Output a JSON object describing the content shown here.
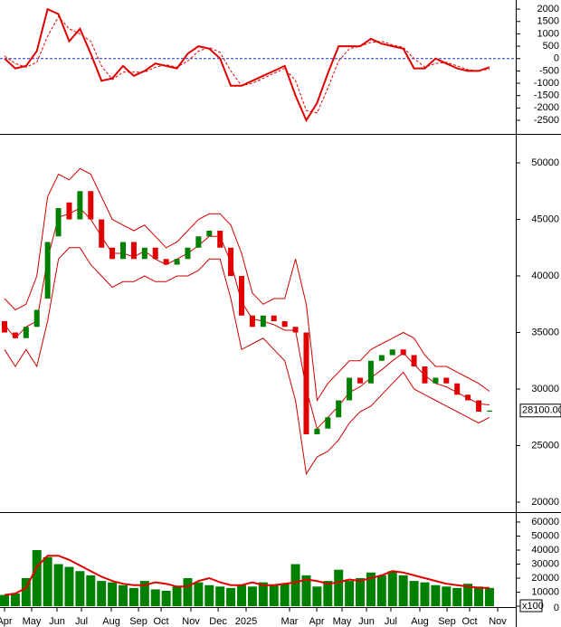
{
  "chart_data": [
    {
      "type": "line",
      "ylim": [
        -3050,
        2370
      ],
      "yticks": [
        2000,
        1500,
        1000,
        500,
        0,
        -500,
        -1000,
        -1500,
        -2000,
        -2500
      ],
      "reference_line": 0,
      "series": [
        {
          "color": "#e00000",
          "values": [
            0,
            -400,
            -300,
            300,
            2000,
            1800,
            700,
            1200,
            200,
            -900,
            -800,
            -300,
            -700,
            -500,
            -200,
            -300,
            -400,
            200,
            500,
            400,
            0,
            -1100,
            -1100,
            -900,
            -700,
            -500,
            -300,
            -1500,
            -2500,
            -1800,
            -600,
            500,
            500,
            500,
            800,
            600,
            500,
            400,
            -400,
            -400,
            0,
            -200,
            -400,
            -500,
            -500,
            -350
          ]
        },
        {
          "color": "#e00000",
          "style": "dashed",
          "values": [
            100,
            -200,
            -350,
            -150,
            900,
            1700,
            1200,
            1000,
            700,
            -300,
            -850,
            -550,
            -550,
            -550,
            -350,
            -250,
            -350,
            -100,
            300,
            450,
            250,
            -500,
            -1100,
            -1000,
            -800,
            -600,
            -400,
            -900,
            -2100,
            -2200,
            -1200,
            -100,
            400,
            500,
            650,
            700,
            550,
            450,
            0,
            -350,
            -200,
            -150,
            -300,
            -450,
            -500,
            -420
          ]
        }
      ]
    },
    {
      "type": "candlestick",
      "ylim": [
        19200,
        52400
      ],
      "yticks": [
        50000,
        45000,
        40000,
        35000,
        30000,
        25000,
        20000
      ],
      "last_price": {
        "value": 28100,
        "label": "28100.00"
      },
      "up_color": "#008000",
      "down_color": "#e00000",
      "band_color": "#d00000",
      "open": [
        36000,
        35000,
        34500,
        35500,
        38000,
        43500,
        46500,
        45000,
        47500,
        45000,
        42500,
        41500,
        43000,
        41500,
        42500,
        41500,
        41000,
        41500,
        42500,
        43500,
        44000,
        42500,
        40000,
        36500,
        35500,
        36500,
        36000,
        35500,
        35000,
        26000,
        26500,
        27500,
        29000,
        31000,
        30500,
        32500,
        33000,
        33500,
        33000,
        32000,
        30500,
        31000,
        30500,
        29500,
        29000,
        28000
      ],
      "close": [
        35000,
        34500,
        35500,
        37000,
        43000,
        46000,
        45000,
        47500,
        45000,
        42500,
        41500,
        43000,
        41500,
        42500,
        41500,
        41000,
        41500,
        42500,
        43500,
        44000,
        42500,
        40000,
        36500,
        35500,
        36500,
        36000,
        35500,
        35000,
        26000,
        26500,
        27500,
        29000,
        31000,
        30500,
        32500,
        33000,
        33500,
        33000,
        32000,
        30500,
        31000,
        30500,
        29500,
        29000,
        28000,
        28100
      ],
      "series": [
        {
          "color": "#d00000",
          "values": [
            38000,
            37000,
            37500,
            40000,
            47000,
            49000,
            48500,
            49500,
            49000,
            47000,
            45000,
            44500,
            44000,
            44500,
            43500,
            42500,
            43000,
            44000,
            45000,
            45500,
            45500,
            44500,
            42000,
            38500,
            37500,
            38000,
            38000,
            41500,
            37500,
            29000,
            30500,
            31500,
            32500,
            32500,
            33500,
            34000,
            34500,
            35000,
            34500,
            33000,
            32000,
            32000,
            31500,
            31000,
            30500,
            29800
          ]
        },
        {
          "color": "#d00000",
          "values": [
            35700,
            34500,
            35500,
            36000,
            41500,
            45200,
            45500,
            46000,
            45000,
            43500,
            42000,
            42000,
            41700,
            42200,
            41500,
            41000,
            41500,
            42000,
            42700,
            43500,
            43500,
            41200,
            37700,
            36200,
            36000,
            35700,
            35200,
            35200,
            30000,
            26500,
            27500,
            28500,
            29700,
            30200,
            31000,
            31700,
            32500,
            33200,
            32200,
            31200,
            30500,
            30200,
            29700,
            29200,
            28700,
            28600
          ]
        },
        {
          "color": "#d00000",
          "values": [
            33500,
            32000,
            33500,
            32000,
            36000,
            41500,
            42500,
            42500,
            41000,
            40000,
            39000,
            39500,
            39500,
            40000,
            39500,
            39500,
            40000,
            40000,
            40500,
            41500,
            41500,
            38000,
            33500,
            34000,
            34500,
            33500,
            32500,
            29000,
            22500,
            24000,
            24500,
            25500,
            27000,
            28000,
            28500,
            29500,
            30500,
            31500,
            30000,
            29500,
            29000,
            28500,
            28000,
            27500,
            27000,
            27500
          ]
        }
      ]
    },
    {
      "type": "bar",
      "ylim": [
        0,
        65800
      ],
      "yticks": [
        60000,
        50000,
        40000,
        30000,
        20000,
        10000,
        0
      ],
      "unit": "x100",
      "color": "#008000",
      "values": [
        8000,
        9000,
        20000,
        40000,
        35000,
        30000,
        28000,
        25000,
        22000,
        18000,
        17000,
        15000,
        13000,
        18000,
        12000,
        11000,
        14000,
        20000,
        17000,
        15000,
        14000,
        13000,
        15000,
        14000,
        17000,
        15000,
        16000,
        30000,
        22000,
        14000,
        18000,
        26000,
        18000,
        20000,
        24000,
        22000,
        25000,
        22000,
        18000,
        17000,
        15000,
        14000,
        13000,
        16000,
        14000,
        13000
      ],
      "series": [
        {
          "color": "#e00000",
          "values": [
            8000,
            9000,
            13000,
            28000,
            36000,
            36000,
            33000,
            29000,
            25000,
            21000,
            18000,
            16000,
            15000,
            15000,
            17000,
            16000,
            14000,
            14000,
            18000,
            20000,
            17000,
            15000,
            15000,
            17000,
            15000,
            15000,
            16000,
            17000,
            19000,
            18000,
            16000,
            17000,
            19000,
            18000,
            20000,
            22000,
            25000,
            24000,
            22000,
            20000,
            18000,
            16000,
            15000,
            14000,
            13000,
            13000
          ]
        }
      ],
      "xlim": [
        -0.42,
        47.44
      ],
      "xticks": [
        {
          "value": 0,
          "label": "Apr"
        },
        {
          "value": 2.52,
          "label": "May"
        },
        {
          "value": 4.87,
          "label": "Jun"
        },
        {
          "value": 7.14,
          "label": "Jul"
        },
        {
          "value": 9.91,
          "label": "Aug"
        },
        {
          "value": 12.43,
          "label": "Sep"
        },
        {
          "value": 14.53,
          "label": "Oct"
        },
        {
          "value": 17.3,
          "label": "Nov"
        },
        {
          "value": 19.82,
          "label": "Dec"
        },
        {
          "value": 22.42,
          "label": "2025"
        },
        {
          "value": 26.45,
          "label": "Mar"
        },
        {
          "value": 28.97,
          "label": "Apr"
        },
        {
          "value": 31.32,
          "label": "May"
        },
        {
          "value": 33.59,
          "label": "Jun"
        },
        {
          "value": 35.85,
          "label": "Jul"
        },
        {
          "value": 38.54,
          "label": "Aug"
        },
        {
          "value": 41.06,
          "label": "Sep"
        },
        {
          "value": 43.16,
          "label": "Oct"
        },
        {
          "value": 45.76,
          "label": "Nov"
        }
      ]
    }
  ]
}
